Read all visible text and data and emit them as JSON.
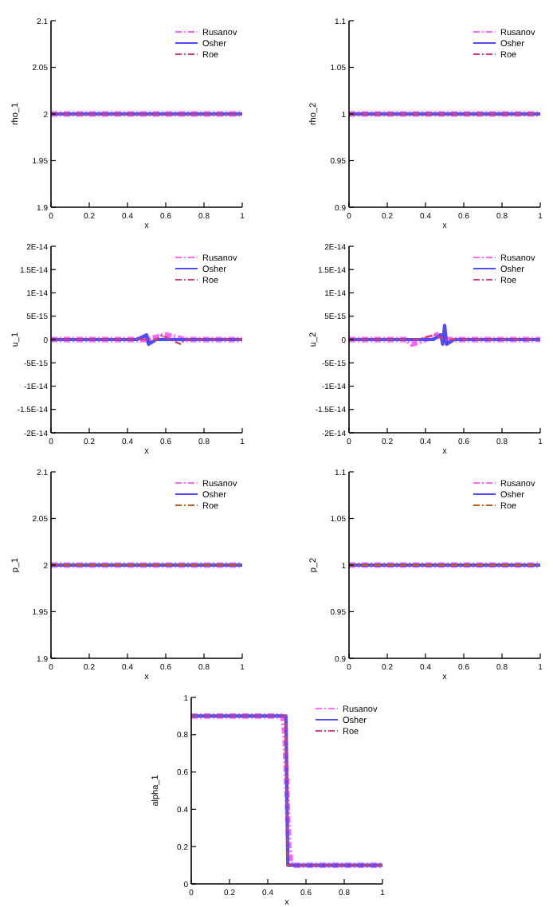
{
  "chart_data": [
    {
      "type": "line",
      "xlabel": "x",
      "ylabel": "rho_1",
      "xlim": [
        0,
        1
      ],
      "xticks": [
        0,
        0.2,
        0.4,
        0.6,
        0.8,
        1
      ],
      "ylim": [
        1.9,
        2.1
      ],
      "yticks": [
        1.9,
        1.95,
        2,
        2.05,
        2.1
      ],
      "legend": "top right",
      "series": [
        {
          "name": "Rusanov",
          "color": "#ff66ff",
          "line_style": "dashed",
          "x": [
            0,
            1
          ],
          "values": [
            2,
            2
          ]
        },
        {
          "name": "Osher",
          "color": "#4d4dff",
          "line_style": "solid",
          "x": [
            0,
            1
          ],
          "values": [
            2,
            2
          ]
        },
        {
          "name": "Roe",
          "color": "#d0406a",
          "line_style": "dashed",
          "x": [
            0,
            1
          ],
          "values": [
            2,
            2
          ]
        }
      ]
    },
    {
      "type": "line",
      "xlabel": "x",
      "ylabel": "rho_2",
      "xlim": [
        0,
        1
      ],
      "xticks": [
        0,
        0.2,
        0.4,
        0.6,
        0.8,
        1
      ],
      "ylim": [
        0.9,
        1.1
      ],
      "yticks": [
        0.9,
        0.95,
        1,
        1.05,
        1.1
      ],
      "legend": "top right",
      "series": [
        {
          "name": "Rusanov",
          "color": "#ff66ff",
          "line_style": "dashed",
          "x": [
            0,
            1
          ],
          "values": [
            1,
            1
          ]
        },
        {
          "name": "Osher",
          "color": "#4d4dff",
          "line_style": "solid",
          "x": [
            0,
            1
          ],
          "values": [
            1,
            1
          ]
        },
        {
          "name": "Roe",
          "color": "#d0406a",
          "line_style": "dashed",
          "x": [
            0,
            1
          ],
          "values": [
            1,
            1
          ]
        }
      ]
    },
    {
      "type": "line",
      "xlabel": "x",
      "ylabel": "u_1",
      "xlim": [
        0,
        1
      ],
      "xticks": [
        0,
        0.2,
        0.4,
        0.6,
        0.8,
        1
      ],
      "ylim": [
        -2e-14,
        2e-14
      ],
      "yticks": [
        {
          "value": -2e-14,
          "label": "-2E-14"
        },
        {
          "value": -1.5e-14,
          "label": "-1.5E-14"
        },
        {
          "value": -1e-14,
          "label": "-1E-14"
        },
        {
          "value": -5e-15,
          "label": "-5E-15"
        },
        0,
        {
          "value": 5e-15,
          "label": "5E-15"
        },
        {
          "value": 1e-14,
          "label": "1E-14"
        },
        {
          "value": 1.5e-14,
          "label": "1.5E-14"
        },
        {
          "value": 2e-14,
          "label": "2E-14"
        }
      ],
      "legend": "top right",
      "series": [
        {
          "name": "Rusanov",
          "color": "#ff66ff",
          "line_style": "dashed",
          "x": [
            0,
            0.3,
            0.4,
            0.5,
            0.6,
            0.7,
            1
          ],
          "values": [
            0,
            0,
            0,
            0,
            1e-15,
            0,
            0
          ]
        },
        {
          "name": "Osher",
          "color": "#4d4dff",
          "line_style": "solid",
          "x": [
            0,
            0.45,
            0.5,
            0.51,
            0.55,
            0.6,
            1
          ],
          "values": [
            0,
            0,
            1e-15,
            -1e-15,
            0,
            0,
            0
          ]
        },
        {
          "name": "Roe",
          "color": "#d0406a",
          "line_style": "dashed",
          "x": [
            0,
            0.55,
            0.58,
            0.62,
            0.68,
            0.7,
            1
          ],
          "values": [
            0,
            0,
            1e-15,
            0,
            -1e-15,
            0,
            0
          ]
        }
      ]
    },
    {
      "type": "line",
      "xlabel": "x",
      "ylabel": "u_2",
      "xlim": [
        0,
        1
      ],
      "xticks": [
        0,
        0.2,
        0.4,
        0.6,
        0.8,
        1
      ],
      "ylim": [
        -2e-14,
        2e-14
      ],
      "yticks": [
        {
          "value": -2e-14,
          "label": "-2E-14"
        },
        {
          "value": -1.5e-14,
          "label": "-1.5E-14"
        },
        {
          "value": -1e-14,
          "label": "-1E-14"
        },
        {
          "value": -5e-15,
          "label": "-5E-15"
        },
        0,
        {
          "value": 5e-15,
          "label": "5E-15"
        },
        {
          "value": 1e-14,
          "label": "1E-14"
        },
        {
          "value": 1.5e-14,
          "label": "1.5E-14"
        },
        {
          "value": 2e-14,
          "label": "2E-14"
        }
      ],
      "legend": "top right",
      "series": [
        {
          "name": "Rusanov",
          "color": "#ff66ff",
          "line_style": "dashed",
          "x": [
            0,
            0.3,
            0.33,
            0.4,
            0.46,
            0.5,
            0.7,
            1
          ],
          "values": [
            0,
            0,
            -1e-15,
            0,
            1e-15,
            0,
            0,
            0
          ]
        },
        {
          "name": "Osher",
          "color": "#4d4dff",
          "line_style": "solid",
          "x": [
            0,
            0.44,
            0.48,
            0.49,
            0.5,
            0.51,
            0.55,
            1
          ],
          "values": [
            0,
            0,
            1e-15,
            -1e-15,
            3e-15,
            -1e-15,
            0,
            0
          ]
        },
        {
          "name": "Roe",
          "color": "#d0406a",
          "line_style": "dashed",
          "x": [
            0,
            0.35,
            0.45,
            0.5,
            0.6,
            1
          ],
          "values": [
            0,
            0,
            1e-15,
            0,
            0,
            0
          ]
        }
      ]
    },
    {
      "type": "line",
      "xlabel": "x",
      "ylabel": "p_1",
      "xlim": [
        0,
        1
      ],
      "xticks": [
        0,
        0.2,
        0.4,
        0.6,
        0.8,
        1
      ],
      "ylim": [
        1.9,
        2.1
      ],
      "yticks": [
        1.9,
        1.95,
        2,
        2.05,
        2.1
      ],
      "legend": "top right",
      "series": [
        {
          "name": "Rusanov",
          "color": "#ff66ff",
          "line_style": "dashed",
          "x": [
            0,
            1
          ],
          "values": [
            2,
            2
          ]
        },
        {
          "name": "Osher",
          "color": "#4d4dff",
          "line_style": "solid",
          "x": [
            0,
            1
          ],
          "values": [
            2,
            2
          ]
        },
        {
          "name": "Roe",
          "color": "#c05a10",
          "line_style": "dashed",
          "x": [
            0,
            1
          ],
          "values": [
            2,
            2
          ]
        }
      ]
    },
    {
      "type": "line",
      "xlabel": "x",
      "ylabel": "p_2",
      "xlim": [
        0,
        1
      ],
      "xticks": [
        0,
        0.2,
        0.4,
        0.6,
        0.8,
        1
      ],
      "ylim": [
        0.9,
        1.1
      ],
      "yticks": [
        0.9,
        0.95,
        1,
        1.05,
        1.1
      ],
      "legend": "top right",
      "series": [
        {
          "name": "Rusanov",
          "color": "#ff66ff",
          "line_style": "dashed",
          "x": [
            0,
            1
          ],
          "values": [
            1,
            1
          ]
        },
        {
          "name": "Osher",
          "color": "#4d4dff",
          "line_style": "solid",
          "x": [
            0,
            1
          ],
          "values": [
            1,
            1
          ]
        },
        {
          "name": "Roe",
          "color": "#c05a10",
          "line_style": "dashed",
          "x": [
            0,
            1
          ],
          "values": [
            1,
            1
          ]
        }
      ]
    },
    {
      "type": "line",
      "xlabel": "x",
      "ylabel": "alpha_1",
      "xlim": [
        0,
        1
      ],
      "xticks": [
        0,
        0.2,
        0.4,
        0.6,
        0.8,
        1
      ],
      "ylim": [
        0,
        1
      ],
      "yticks": [
        0,
        0.2,
        0.4,
        0.6,
        0.8,
        1
      ],
      "legend": "top right",
      "series": [
        {
          "name": "Rusanov",
          "color": "#ff66ff",
          "line_style": "dashed",
          "x": [
            0,
            0.47,
            0.48,
            0.49,
            0.5,
            0.51,
            0.52,
            0.53,
            1
          ],
          "values": [
            0.9,
            0.9,
            0.89,
            0.8,
            0.5,
            0.2,
            0.11,
            0.1,
            0.1
          ]
        },
        {
          "name": "Osher",
          "color": "#4d4dff",
          "line_style": "solid",
          "x": [
            0,
            0.495,
            0.505,
            1
          ],
          "values": [
            0.9,
            0.9,
            0.1,
            0.1
          ]
        },
        {
          "name": "Roe",
          "color": "#d0406a",
          "line_style": "dashed",
          "x": [
            0,
            0.495,
            0.505,
            1
          ],
          "values": [
            0.9,
            0.9,
            0.1,
            0.1
          ]
        }
      ]
    }
  ]
}
